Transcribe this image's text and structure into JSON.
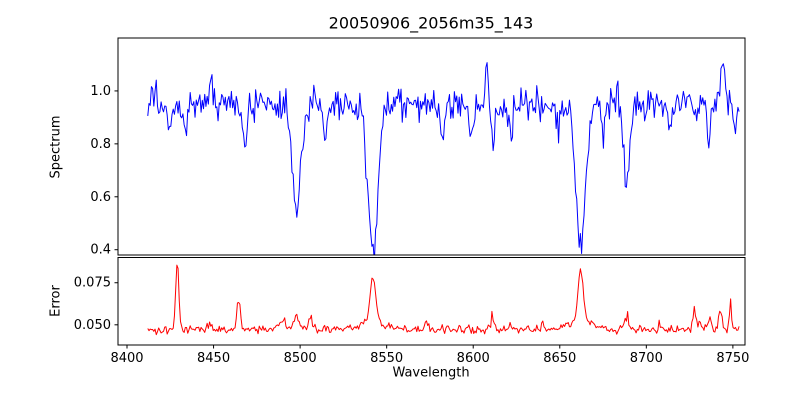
{
  "chart": {
    "title": "20050906_2056m35_143",
    "xlabel": "Wavelength",
    "xlim": [
      8394.8,
      8757.0
    ],
    "xticks": [
      8400,
      8450,
      8500,
      8550,
      8600,
      8650,
      8700,
      8750
    ],
    "xtick_labels": [
      "8400",
      "8450",
      "8500",
      "8550",
      "8600",
      "8650",
      "8700",
      "8750"
    ],
    "background": "#ffffff",
    "axis_color": "#000000"
  },
  "chart_data": [
    {
      "type": "line",
      "name": "spectrum",
      "ylabel": "Spectrum",
      "color": "#0000ff",
      "ylim": [
        0.38,
        1.2
      ],
      "yticks": [
        0.4,
        0.6,
        0.8,
        1.0
      ],
      "ytick_labels": [
        "0.4",
        "0.6",
        "0.8",
        "1.0"
      ],
      "x_start": 8412,
      "x_end": 8754,
      "x_step": 0.7,
      "continuum": 0.952,
      "noise_sigma": 0.03,
      "spike_prob": 0.02,
      "spike_amp": 0.09,
      "seed": 20050906,
      "absorption_lines": [
        {
          "center": 8424.5,
          "depth": 0.13,
          "width": 1.2
        },
        {
          "center": 8433.8,
          "depth": 0.1,
          "width": 1.0
        },
        {
          "center": 8468.4,
          "depth": 0.17,
          "width": 1.3
        },
        {
          "center": 8498.0,
          "depth": 0.4,
          "width": 2.6
        },
        {
          "center": 8514.1,
          "depth": 0.13,
          "width": 1.1
        },
        {
          "center": 8542.1,
          "depth": 0.56,
          "width": 3.0
        },
        {
          "center": 8582.3,
          "depth": 0.13,
          "width": 1.1
        },
        {
          "center": 8598.8,
          "depth": 0.13,
          "width": 1.1
        },
        {
          "center": 8611.6,
          "depth": 0.1,
          "width": 1.0
        },
        {
          "center": 8621.7,
          "depth": 0.11,
          "width": 1.0
        },
        {
          "center": 8648.5,
          "depth": 0.1,
          "width": 1.0
        },
        {
          "center": 8662.1,
          "depth": 0.54,
          "width": 2.9
        },
        {
          "center": 8674.8,
          "depth": 0.16,
          "width": 1.1
        },
        {
          "center": 8688.6,
          "depth": 0.32,
          "width": 1.6
        },
        {
          "center": 8713.2,
          "depth": 0.09,
          "width": 1.0
        },
        {
          "center": 8736.0,
          "depth": 0.1,
          "width": 1.0
        },
        {
          "center": 8751.0,
          "depth": 0.09,
          "width": 1.0
        }
      ],
      "emission_spikes": [
        {
          "center": 8448.5,
          "height": 0.1,
          "width": 0.8
        },
        {
          "center": 8608.0,
          "height": 0.15,
          "width": 0.8
        },
        {
          "center": 8744.5,
          "height": 0.16,
          "width": 0.9
        }
      ]
    },
    {
      "type": "line",
      "name": "error",
      "ylabel": "Error",
      "color": "#ff0000",
      "ylim": [
        0.038,
        0.09
      ],
      "yticks": [
        0.05,
        0.075
      ],
      "ytick_labels": [
        "0.050",
        "0.075"
      ],
      "x_start": 8412,
      "x_end": 8754,
      "x_step": 0.7,
      "baseline": 0.0472,
      "noise_sigma": 0.0012,
      "spike_prob": 0.06,
      "spike_amp": 0.007,
      "seed": 143,
      "peaks": [
        {
          "center": 8429.0,
          "height": 0.04,
          "width": 0.9
        },
        {
          "center": 8464.5,
          "height": 0.019,
          "width": 0.9
        },
        {
          "center": 8490.0,
          "height": 0.005,
          "width": 2.0
        },
        {
          "center": 8498.0,
          "height": 0.009,
          "width": 1.4
        },
        {
          "center": 8506.0,
          "height": 0.007,
          "width": 1.2
        },
        {
          "center": 8542.1,
          "height": 0.026,
          "width": 1.6
        },
        {
          "center": 8542.1,
          "height": 0.005,
          "width": 6.0
        },
        {
          "center": 8573.0,
          "height": 0.005,
          "width": 1.0
        },
        {
          "center": 8611.5,
          "height": 0.007,
          "width": 0.8
        },
        {
          "center": 8640.0,
          "height": 0.004,
          "width": 0.8
        },
        {
          "center": 8662.1,
          "height": 0.03,
          "width": 1.5
        },
        {
          "center": 8662.1,
          "height": 0.006,
          "width": 6.0
        },
        {
          "center": 8688.6,
          "height": 0.007,
          "width": 1.2
        },
        {
          "center": 8728.0,
          "height": 0.01,
          "width": 1.1
        },
        {
          "center": 8736.5,
          "height": 0.008,
          "width": 0.9
        },
        {
          "center": 8742.5,
          "height": 0.012,
          "width": 1.0
        },
        {
          "center": 8748.5,
          "height": 0.009,
          "width": 0.9
        }
      ]
    }
  ]
}
